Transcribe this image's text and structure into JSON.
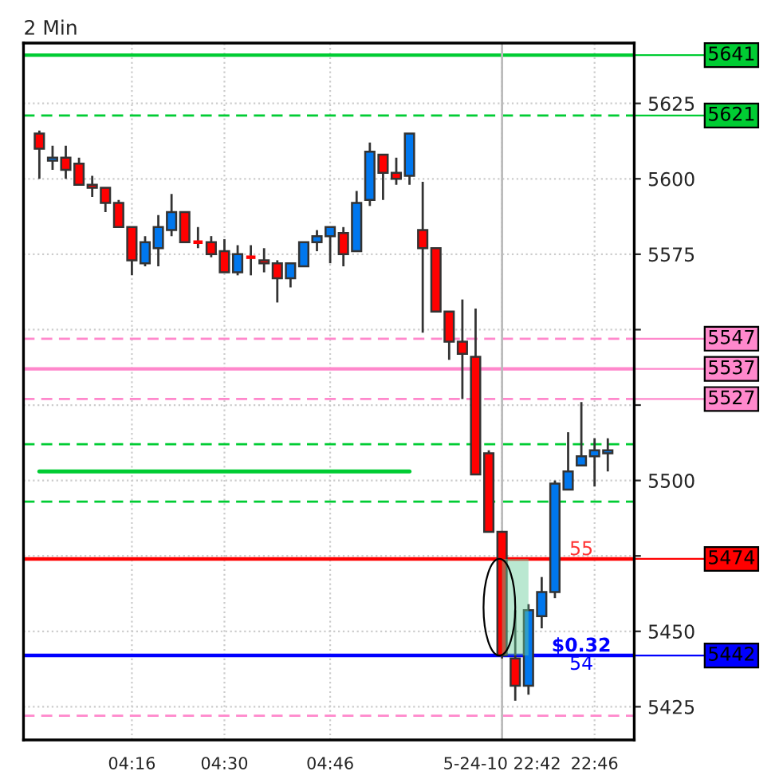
{
  "chart_data": {
    "type": "candlestick",
    "title": "2 Min",
    "categories": [
      null,
      null,
      null,
      null,
      null,
      null,
      null,
      "04:16",
      null,
      null,
      null,
      null,
      null,
      null,
      "04:30",
      null,
      null,
      null,
      null,
      null,
      null,
      null,
      "04:46",
      null,
      null,
      null,
      null,
      null,
      null,
      null,
      null,
      null,
      null,
      null,
      null,
      "5-24-10 22:42",
      null,
      null,
      null,
      null,
      null,
      null,
      "22:46",
      null
    ],
    "ohlc": [
      [
        5615,
        5616,
        5600,
        5610
      ],
      [
        5606,
        5611,
        5603,
        5607
      ],
      [
        5607,
        5611,
        5600,
        5603
      ],
      [
        5605,
        5607,
        5598,
        5598
      ],
      [
        5598,
        5601,
        5594,
        5597
      ],
      [
        5597,
        5597,
        5589,
        5592
      ],
      [
        5592,
        5593,
        5584,
        5584
      ],
      [
        5584,
        5584,
        5568,
        5573
      ],
      [
        5572,
        5581,
        5571,
        5579
      ],
      [
        5577,
        5588,
        5571,
        5584
      ],
      [
        5583,
        5595,
        5581,
        5589
      ],
      [
        5589,
        5589,
        5579,
        5579
      ],
      [
        5579,
        5584,
        5577,
        5579
      ],
      [
        5579,
        5581,
        5574,
        5575
      ],
      [
        5576,
        5580,
        5569,
        5569
      ],
      [
        5569,
        5578,
        5568,
        5575
      ],
      [
        5574,
        5578,
        5568,
        5574
      ],
      [
        5573,
        5577,
        5569,
        5572
      ],
      [
        5572,
        5573,
        5559,
        5567
      ],
      [
        5567,
        5572,
        5564,
        5572
      ],
      [
        5571,
        5579,
        5571,
        5579
      ],
      [
        5579,
        5583,
        5576,
        5581
      ],
      [
        5581,
        5584,
        5572,
        5584
      ],
      [
        5582,
        5584,
        5571,
        5575
      ],
      [
        5576,
        5596,
        5576,
        5592
      ],
      [
        5593,
        5612,
        5591,
        5609
      ],
      [
        5608,
        5608,
        5593,
        5602
      ],
      [
        5602,
        5607,
        5598,
        5600
      ],
      [
        5601,
        5615,
        5598,
        5615
      ],
      [
        5583,
        5599,
        5549,
        5577
      ],
      [
        5577,
        5577,
        5556,
        5556
      ],
      [
        5556,
        5556,
        5540,
        5546
      ],
      [
        5546,
        5560,
        5527,
        5542
      ],
      [
        5541,
        5557,
        5502,
        5502
      ],
      [
        5509,
        5510,
        5483,
        5483
      ],
      [
        5483,
        5483,
        5441,
        5442
      ],
      [
        5441,
        5457,
        5427,
        5432
      ],
      [
        5432,
        5459,
        5429,
        5457
      ],
      [
        5455,
        5468,
        5451,
        5463
      ],
      [
        5463,
        5500,
        5461,
        5499
      ],
      [
        5497,
        5516,
        5497,
        5503
      ],
      [
        5505,
        5526,
        5505,
        5508
      ],
      [
        5508,
        5514,
        5498,
        5510
      ],
      [
        5509,
        5514,
        5503,
        5510
      ]
    ],
    "colors": [
      "#ff0000",
      "#0077ee",
      "#ff0000",
      "#ff0000",
      "#ff0000",
      "#ff0000",
      "#ff0000",
      "#ff0000",
      "#0077ee",
      "#0077ee",
      "#0077ee",
      "#ff0000",
      "#ff0000",
      "#ff0000",
      "#ff0000",
      "#0077ee",
      "#ff0000",
      "#ff0000",
      "#ff0000",
      "#0077ee",
      "#0077ee",
      "#0077ee",
      "#0077ee",
      "#ff0000",
      "#0077ee",
      "#0077ee",
      "#ff0000",
      "#ff0000",
      "#0077ee",
      "#ff0000",
      "#ff0000",
      "#ff0000",
      "#ff0000",
      "#ff0000",
      "#ff0000",
      "#ff0000",
      "#ff0000",
      "#0077ee",
      "#0077ee",
      "#0077ee",
      "#0077ee",
      "#0077ee",
      "#0077ee",
      "#0077ee"
    ],
    "series": [
      {
        "type": "line",
        "color": "#00cc33",
        "values": [
          5503,
          5503,
          5503,
          5503,
          5503,
          5503,
          5503,
          5503,
          5503,
          5503,
          5503,
          5503,
          5503,
          5503,
          5503,
          5503,
          5503,
          5503,
          5503,
          5503,
          5503,
          5503,
          5503,
          5503,
          5503,
          5503,
          5503,
          5503,
          5503,
          null,
          null,
          null,
          null,
          null,
          null,
          null,
          null,
          null,
          null,
          null,
          null,
          null,
          null,
          null
        ]
      }
    ],
    "ylim": [
      5414,
      5645
    ],
    "yticks": [
      {
        "value": 5425,
        "label": "5425"
      },
      {
        "value": 5450,
        "label": "5450"
      },
      {
        "value": 5475,
        "label": null
      },
      {
        "value": 5500,
        "label": "5500"
      },
      {
        "value": 5525,
        "label": null
      },
      {
        "value": 5550,
        "label": null
      },
      {
        "value": 5575,
        "label": "5575"
      },
      {
        "value": 5600,
        "label": "5600"
      },
      {
        "value": 5625,
        "label": "5625"
      }
    ],
    "grid": true,
    "ref_lines": [
      {
        "axis": "y",
        "value": 5641,
        "label": "5641",
        "color": "#00cc33",
        "line_style": "solid"
      },
      {
        "axis": "y",
        "value": 5621,
        "label": "5621",
        "color": "#00cc33",
        "line_style": "dashed"
      },
      {
        "axis": "y",
        "value": 5547,
        "label": "5547",
        "color": "#ff88cc",
        "line_style": "dashed"
      },
      {
        "axis": "y",
        "value": 5537,
        "label": "5537",
        "color": "#ff88cc",
        "line_style": "solid"
      },
      {
        "axis": "y",
        "value": 5527,
        "label": "5527",
        "color": "#ff88cc",
        "line_style": "dashed"
      },
      {
        "axis": "y",
        "value": 5512,
        "color": "#00cc33",
        "line_style": "dashed"
      },
      {
        "axis": "y",
        "value": 5493,
        "color": "#00cc33",
        "line_style": "dashed"
      },
      {
        "axis": "y",
        "value": 5422,
        "color": "#ff88cc",
        "line_style": "dashed"
      },
      {
        "axis": "y",
        "value": 5474,
        "label": "5474",
        "color": "#ff0000",
        "line_style": "solid"
      },
      {
        "axis": "y",
        "value": 5442,
        "label": "5442",
        "color": "#0000ff",
        "line_style": "solid"
      },
      {
        "axis": "x",
        "value": "5-24-10 22:42",
        "color": "#bbbbbb",
        "line_style": "solid"
      }
    ],
    "annotations": [
      {
        "text": "55",
        "y": 5474
      },
      {
        "text": "$0.32",
        "y": 5442
      },
      {
        "text": "54",
        "y": 5442
      }
    ]
  }
}
